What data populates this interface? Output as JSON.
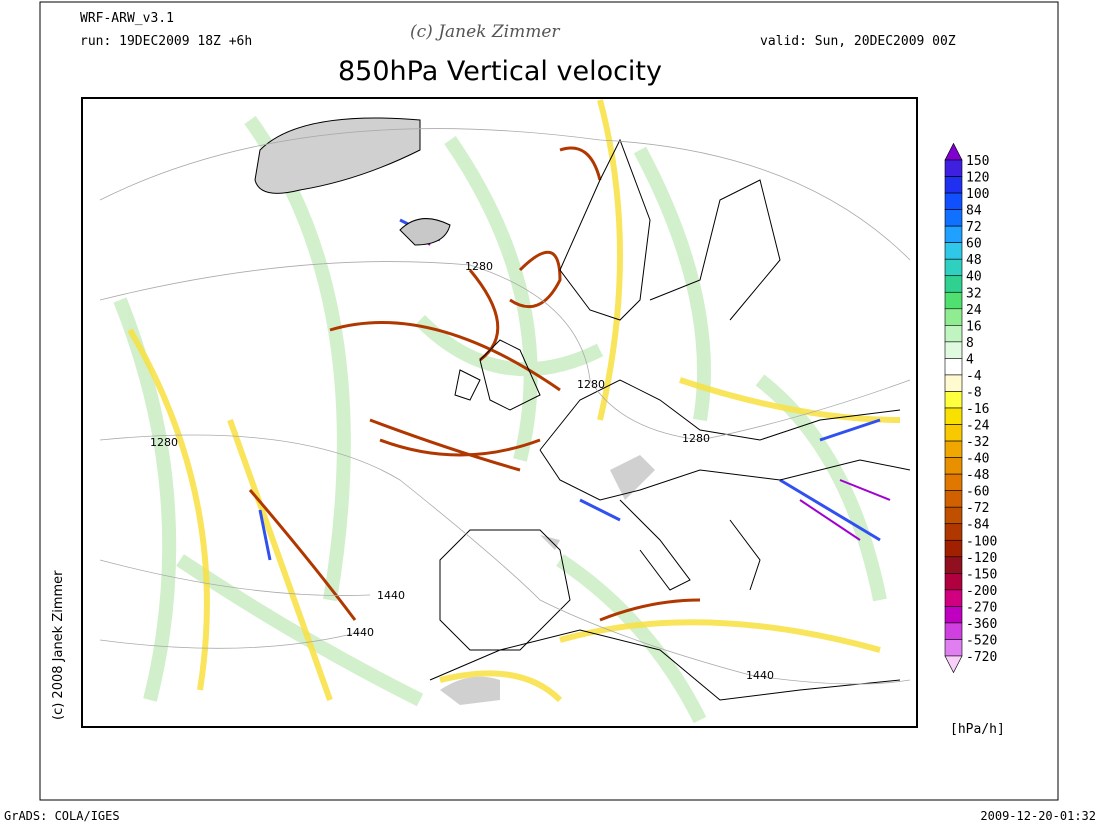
{
  "header": {
    "model": "WRF-ARW_v3.1",
    "run": "run: 19DEC2009 18Z +6h",
    "copyright": "(c) Janek Zimmer",
    "valid": "valid: Sun, 20DEC2009 00Z",
    "title": "850hPa Vertical velocity"
  },
  "side_note": "(c) 2008 Janek Zimmer",
  "map": {
    "contour_labels": [
      "1280",
      "1280",
      "1280",
      "1280",
      "1440",
      "1440",
      "1440"
    ]
  },
  "colorbar": {
    "unit": "[hPa/h]",
    "labels": [
      150,
      120,
      100,
      84,
      72,
      60,
      48,
      40,
      32,
      24,
      16,
      8,
      4,
      -4,
      -8,
      -16,
      -24,
      -32,
      -40,
      -48,
      -60,
      -72,
      -84,
      -100,
      -120,
      -150,
      -200,
      -270,
      -360,
      -520,
      -720
    ],
    "colors": [
      "#8000d0",
      "#4020e0",
      "#2030f0",
      "#1050ff",
      "#1070ff",
      "#20a0ff",
      "#30c8e8",
      "#30d0c0",
      "#30d090",
      "#50e070",
      "#90ec90",
      "#c0f4c0",
      "#e0fae0",
      "#ffffff",
      "#fffad0",
      "#ffff40",
      "#f8e000",
      "#f8c800",
      "#f0a800",
      "#e89000",
      "#e07800",
      "#d06000",
      "#c05000",
      "#b03800",
      "#a02000",
      "#901020",
      "#b00040",
      "#d00080",
      "#c000c0",
      "#d040e0",
      "#e080f0",
      "#f8d0f8"
    ]
  },
  "footer": {
    "left": "GrADS: COLA/IGES",
    "right": "2009-12-20-01:32"
  }
}
